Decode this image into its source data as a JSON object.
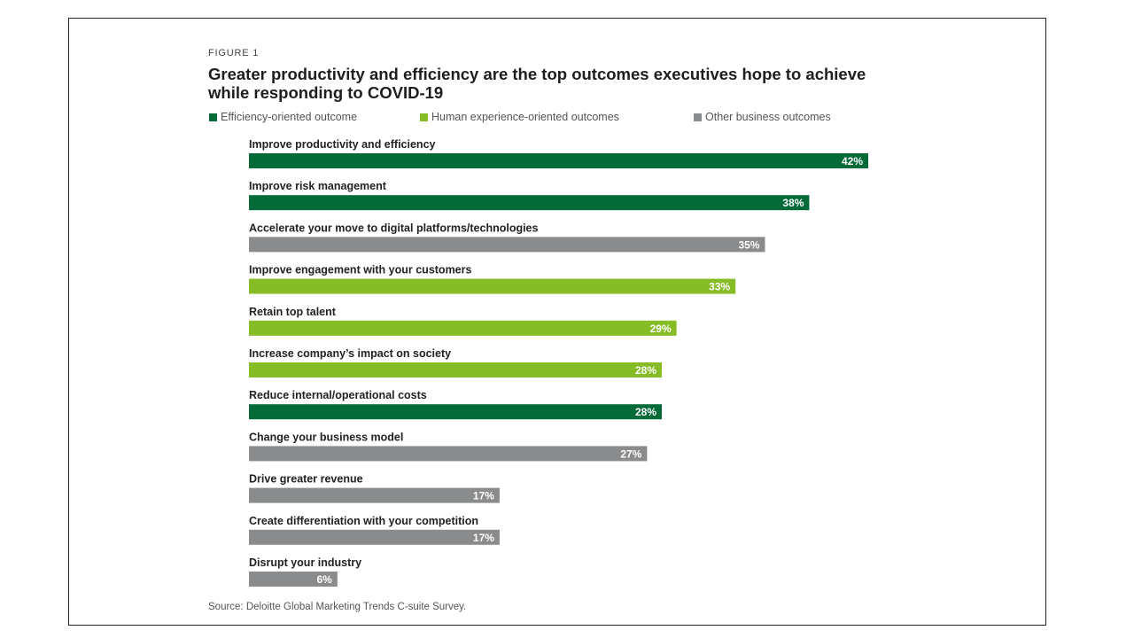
{
  "figure_label": "FIGURE 1",
  "title": "Greater productivity and efficiency are the top outcomes executives hope to achieve while responding to COVID-19",
  "source": "Source: Deloitte Global Marketing Trends C-suite Survey.",
  "colors": {
    "efficiency": "#046a38",
    "human": "#86bc25",
    "other": "#8a8b8d"
  },
  "chart_data": {
    "type": "bar",
    "orientation": "horizontal",
    "legend": [
      {
        "key": "efficiency",
        "label": "Efficiency-oriented outcome"
      },
      {
        "key": "human",
        "label": "Human experience-oriented outcomes"
      },
      {
        "key": "other",
        "label": "Other business outcomes"
      }
    ],
    "categories": [
      "Improve productivity and efficiency",
      "Improve risk management",
      "Accelerate your move to digital platforms/technologies",
      "Improve engagement with your customers",
      "Retain top talent",
      "Increase company’s impact on society",
      "Reduce internal/operational costs",
      "Change your business model",
      "Drive greater revenue",
      "Create differentiation with your competition",
      "Disrupt your industry"
    ],
    "values": [
      42,
      38,
      35,
      33,
      29,
      28,
      28,
      27,
      17,
      17,
      6
    ],
    "value_labels": [
      "42%",
      "38%",
      "35%",
      "33%",
      "29%",
      "28%",
      "28%",
      "27%",
      "17%",
      "17%",
      "6%"
    ],
    "groups": [
      "efficiency",
      "efficiency",
      "other",
      "human",
      "human",
      "human",
      "efficiency",
      "other",
      "other",
      "other",
      "other"
    ],
    "xlim": [
      0,
      42
    ]
  }
}
